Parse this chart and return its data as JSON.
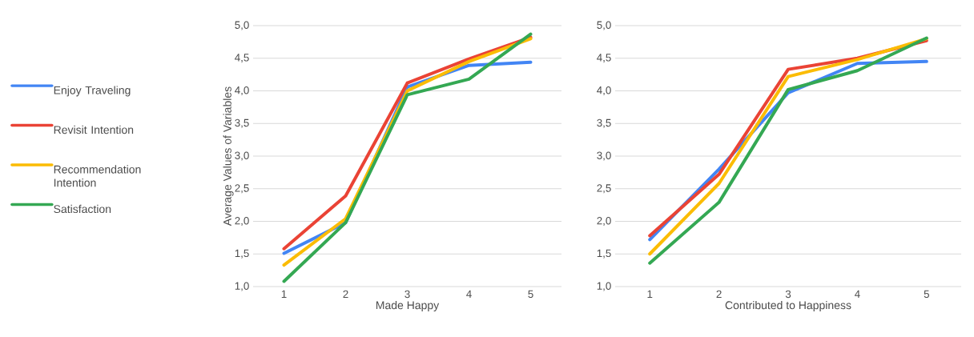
{
  "chart_data": [
    {
      "type": "line",
      "xlabel": "Made Happy",
      "ylabel": "Average Values of Variables",
      "categories": [
        "1",
        "2",
        "3",
        "4",
        "5"
      ],
      "series": [
        {
          "name": "Enjoy Traveling",
          "color": "#4285f4",
          "values": [
            1.51,
            1.98,
            4.06,
            4.39,
            4.44
          ]
        },
        {
          "name": "Revisit Intention",
          "color": "#ea4335",
          "values": [
            1.58,
            2.39,
            4.12,
            4.49,
            4.82
          ]
        },
        {
          "name": "Recommendation Intention",
          "color": "#fbbc04",
          "values": [
            1.33,
            2.04,
            4.0,
            4.45,
            4.8
          ]
        },
        {
          "name": "Satisfaction",
          "color": "#34a853",
          "values": [
            1.08,
            1.98,
            3.94,
            4.18,
            4.87
          ]
        }
      ],
      "ylim": [
        1,
        5
      ],
      "yticks": [
        {
          "value": 1,
          "label": "1,0"
        },
        {
          "value": 1.5,
          "label": "1,5"
        },
        {
          "value": 2,
          "label": "2,0"
        },
        {
          "value": 2.5,
          "label": "2,5"
        },
        {
          "value": 3,
          "label": "3,0"
        },
        {
          "value": 3.5,
          "label": "3,5"
        },
        {
          "value": 4,
          "label": "4,0"
        },
        {
          "value": 4.5,
          "label": "4,5"
        },
        {
          "value": 5,
          "label": "5,0"
        }
      ],
      "grid": "y",
      "legend": "left",
      "marker": "none",
      "line_style": "solid"
    },
    {
      "type": "line",
      "xlabel": "Contributed to Happiness",
      "categories": [
        "1",
        "2",
        "3",
        "4",
        "5"
      ],
      "series": [
        {
          "color": "#4285f4",
          "values": [
            1.72,
            2.8,
            3.97,
            4.42,
            4.45
          ]
        },
        {
          "color": "#ea4335",
          "values": [
            1.78,
            2.72,
            4.33,
            4.5,
            4.77
          ]
        },
        {
          "color": "#fbbc04",
          "values": [
            1.5,
            2.58,
            4.22,
            4.48,
            4.8
          ]
        },
        {
          "color": "#34a853",
          "values": [
            1.36,
            2.29,
            4.02,
            4.31,
            4.81
          ]
        }
      ],
      "ylim": [
        1,
        5
      ],
      "yticks": [
        {
          "value": 1,
          "label": "1,0"
        },
        {
          "value": 1.5,
          "label": "1,5"
        },
        {
          "value": 2,
          "label": "2,0"
        },
        {
          "value": 2.5,
          "label": "2,5"
        },
        {
          "value": 3,
          "label": "3,0"
        },
        {
          "value": 3.5,
          "label": "3,5"
        },
        {
          "value": 4,
          "label": "4,0"
        },
        {
          "value": 4.5,
          "label": "4,5"
        },
        {
          "value": 5,
          "label": "5,0"
        }
      ],
      "grid": "y",
      "marker": "none",
      "line_style": "solid"
    }
  ]
}
